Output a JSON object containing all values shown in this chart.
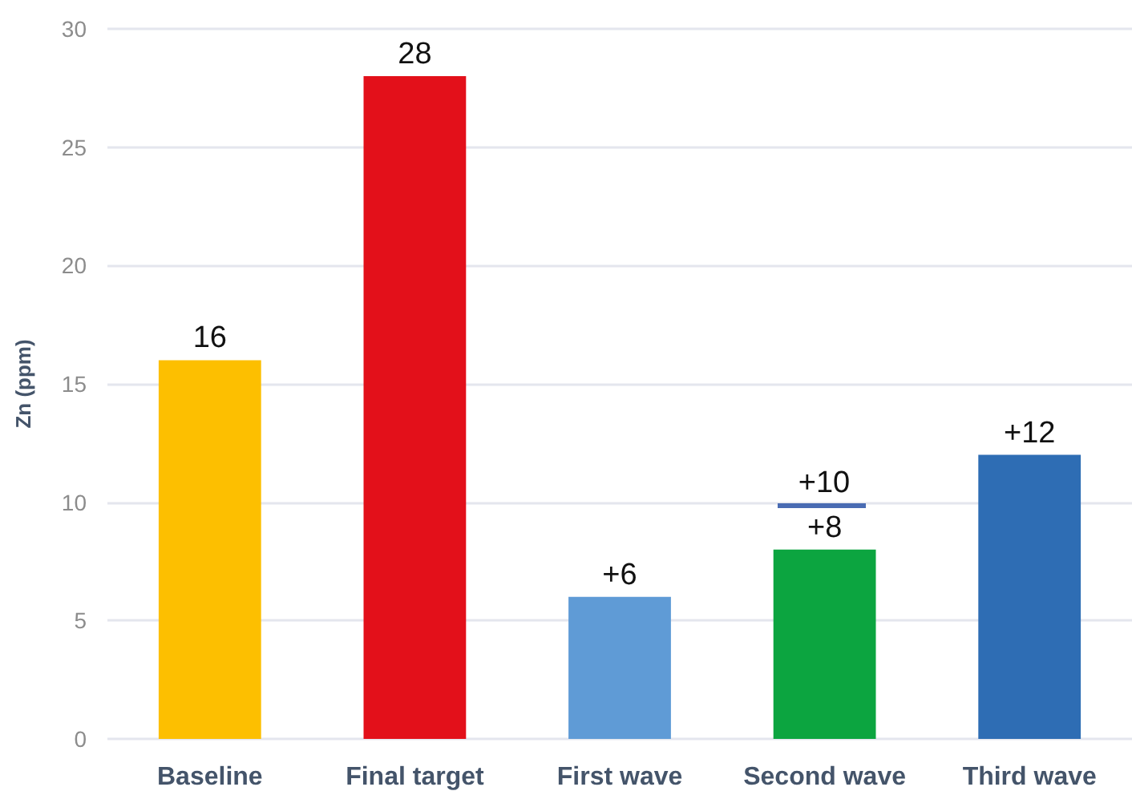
{
  "chart_data": {
    "type": "bar",
    "ylabel": "Zn (ppm)",
    "categories": [
      "Baseline",
      "Final target",
      "First wave",
      "Second wave",
      "Third wave"
    ],
    "series": [
      {
        "values": [
          16,
          28,
          6,
          8,
          12
        ],
        "colors": [
          "#fdbf00",
          "#e3101a",
          "#5f9bd6",
          "#0ca540",
          "#2e6db4"
        ],
        "value_labels": [
          "16",
          "28",
          "+6",
          "+8",
          "+12"
        ]
      }
    ],
    "annotations": [
      "+10"
    ],
    "ylim": [
      0,
      30
    ],
    "yticks": [
      0,
      5,
      10,
      15,
      20,
      25,
      30
    ],
    "grid": "y"
  }
}
